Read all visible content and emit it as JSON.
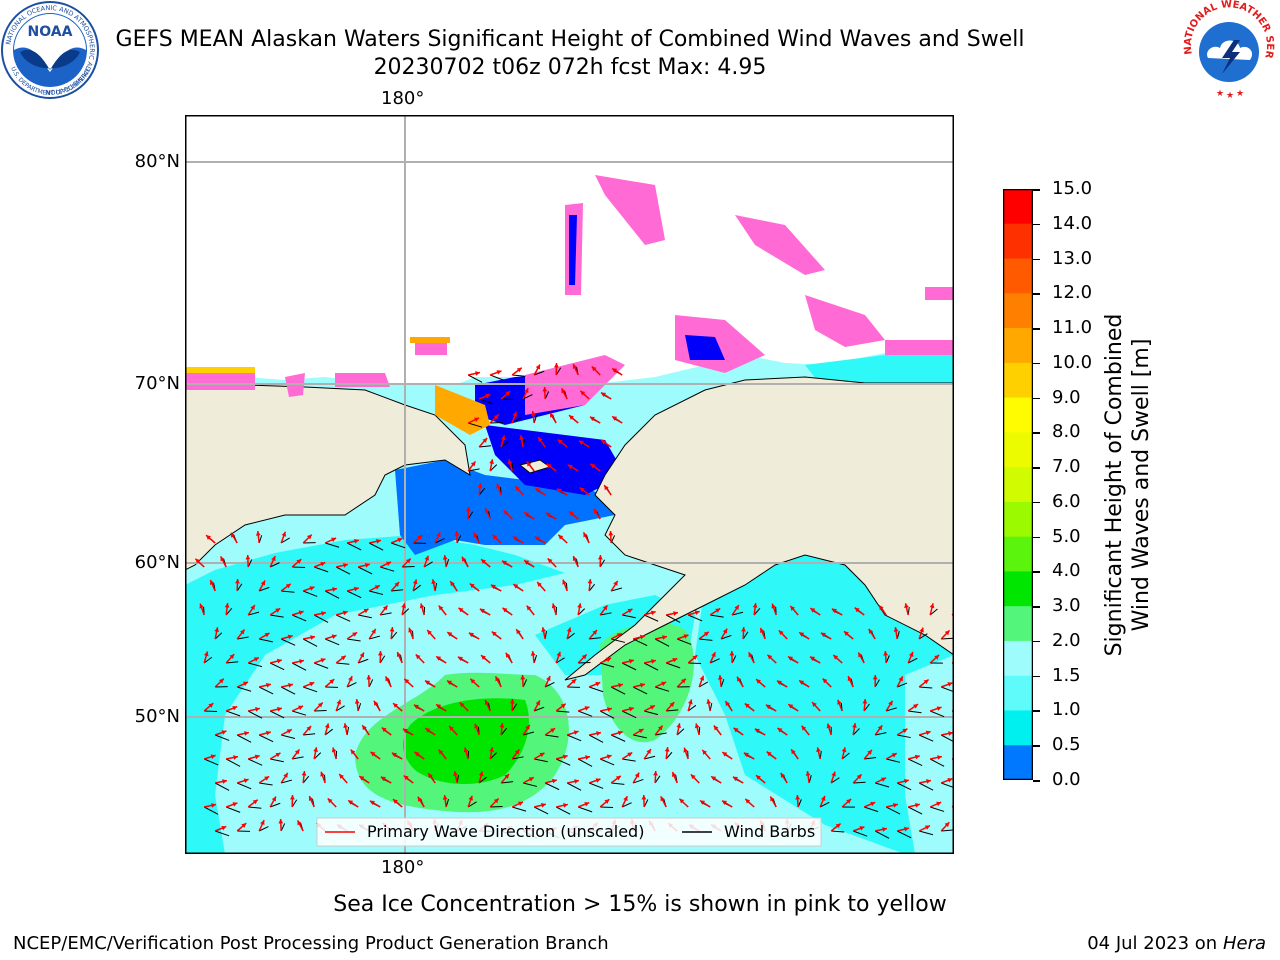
{
  "header": {
    "title_line1": "GEFS MEAN Alaskan Waters Significant Height of Combined Wind Waves and Swell",
    "title_line2": "20230702 t06z 072h fcst   Max: 4.95"
  },
  "logos": {
    "left": "noaa-logo",
    "left_text": "NOAA",
    "left_ring_text": "NATIONAL OCEANIC AND ATMOSPHERIC ADMINISTRATION",
    "left_ring_bottom": "U.S. DEPARTMENT OF COMMERCE",
    "right": "nws-logo",
    "right_ring_text": "NATIONAL WEATHER SERVICE"
  },
  "map": {
    "lon_label_top": "180°",
    "lon_label_bottom": "180°",
    "lat_labels": [
      "80°N",
      "70°N",
      "60°N",
      "50°N"
    ],
    "land_color": "#efedda",
    "ocean_colors": {
      "light_cyan": "#9ffcfc",
      "cyan": "#2ff8f8",
      "blue": "#0072ff",
      "deep_blue": "#0000fa",
      "green": "#39f563"
    }
  },
  "legend": {
    "items": [
      {
        "label": "Primary Wave Direction (unscaled)",
        "color": "#ff0000"
      },
      {
        "label": "Wind Barbs",
        "color": "#000000"
      }
    ]
  },
  "colorbar": {
    "label_line1": "Significant Height of Combined",
    "label_line2": "Wind Waves and Swell [m]",
    "ticks": [
      "15.0",
      "14.0",
      "13.0",
      "12.0",
      "11.0",
      "10.0",
      "9.0",
      "8.0",
      "7.0",
      "6.0",
      "5.0",
      "4.0",
      "3.0",
      "2.0",
      "1.5",
      "1.0",
      "0.5",
      "0.0"
    ],
    "colors_top_to_bottom": [
      "#ff0000",
      "#ff3000",
      "#ff5a00",
      "#ff8000",
      "#ffa800",
      "#ffd000",
      "#fffb00",
      "#ecfb00",
      "#d0fb00",
      "#9cfa00",
      "#5bf40c",
      "#00e600",
      "#53f57b",
      "#9ffcfc",
      "#5ffafa",
      "#00f0f0",
      "#0078ff",
      "#0000ff"
    ]
  },
  "footer": {
    "ice_note": "Sea Ice Concentration > 15% is shown in pink to yellow",
    "credit": "NCEP/EMC/Verification Post Processing Product Generation Branch",
    "date": "04 Jul 2023 on ",
    "host": "Hera"
  }
}
